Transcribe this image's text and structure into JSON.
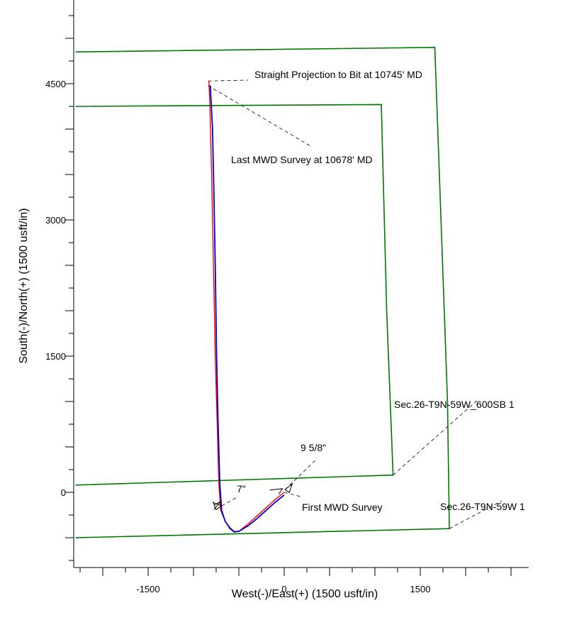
{
  "chart_data": {
    "type": "line",
    "title": "",
    "xlabel": "West(-)/East(+) (1500 usft/in)",
    "ylabel": "South(-)/North(+) (1500 usft/in)",
    "xlim": [
      -2250,
      2700
    ],
    "ylim": [
      -810,
      5300
    ],
    "x_ticks": [
      -1500,
      0,
      1500
    ],
    "y_ticks": [
      0,
      1500,
      3000,
      4500
    ],
    "x_tick_labels": [
      "-1500",
      "0",
      "1500"
    ],
    "y_tick_labels": [
      "0",
      "1500",
      "3000",
      "4500"
    ],
    "grid": false,
    "series": [
      {
        "color": "#ff0000",
        "x": [
          0,
          -100,
          -200,
          -300,
          -400,
          -500,
          -550,
          -600,
          -650,
          -700,
          -720,
          -740,
          -760,
          -780,
          -800,
          -820,
          -830
        ],
        "y": [
          0,
          -80,
          -170,
          -260,
          -350,
          -430,
          -440,
          -400,
          -320,
          -200,
          100,
          800,
          1500,
          2500,
          3500,
          4300,
          4530
        ]
      },
      {
        "color": "#0000cc",
        "x": [
          0,
          -100,
          -200,
          -300,
          -400,
          -500,
          -550,
          -600,
          -650,
          -690,
          -710,
          -730,
          -745,
          -760,
          -775,
          -790,
          -815
        ],
        "y": [
          -30,
          -110,
          -200,
          -290,
          -370,
          -430,
          -435,
          -390,
          -320,
          -200,
          100,
          800,
          1500,
          2500,
          3300,
          4000,
          4480
        ]
      }
    ],
    "boundaries": [
      {
        "label": "Sec.26-T9N-59W  1",
        "color": "#007700",
        "x": [
          -2300,
          1660,
          1800,
          1820,
          -2300
        ],
        "y": [
          4850,
          4900,
          1000,
          -400,
          -500
        ]
      },
      {
        "label": "Sec.26-T9N-59W_600SB  1",
        "color": "#007700",
        "x": [
          -2300,
          1070,
          1130,
          1200,
          -2300
        ],
        "y": [
          4250,
          4270,
          2000,
          190,
          80
        ]
      }
    ],
    "annotations": [
      {
        "text": "Straight Projection to Bit at 10745' MD",
        "x": -840,
        "y": 4530
      },
      {
        "text": "Last MWD Survey at 10678' MD",
        "x": -840,
        "y": 4480
      },
      {
        "text": "First MWD Survey",
        "x": 0,
        "y": 0
      },
      {
        "text": "9 5/8\"",
        "x": 10,
        "y": 30
      },
      {
        "text": "7\"",
        "x": -690,
        "y": -150
      }
    ]
  }
}
